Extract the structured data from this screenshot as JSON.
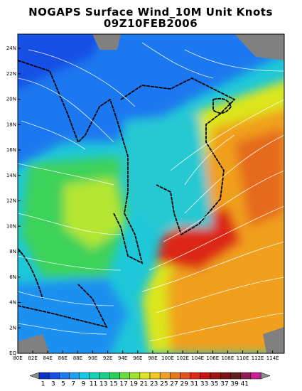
{
  "header": {
    "title": "NOGAPS Surface Wind_10M Unit Knots",
    "subtitle": "09Z10FEB2006"
  },
  "map": {
    "lat_labels": [
      "EQ",
      "2N",
      "4N",
      "6N",
      "8N",
      "10N",
      "12N",
      "14N",
      "16N",
      "18N",
      "20N",
      "22N",
      "24N"
    ],
    "lon_labels": [
      "80E",
      "82E",
      "84E",
      "86E",
      "88E",
      "90E",
      "92E",
      "94E",
      "96E",
      "98E",
      "100E",
      "102E",
      "104E",
      "106E",
      "108E",
      "110E",
      "112E",
      "114E"
    ]
  },
  "colorbar": {
    "labels": [
      1,
      3,
      5,
      7,
      9,
      11,
      13,
      15,
      17,
      19,
      21,
      23,
      25,
      27,
      29,
      31,
      33,
      35,
      37,
      39,
      41
    ],
    "colors": [
      "#0a32c8",
      "#1450e6",
      "#1e78f0",
      "#1ea0f0",
      "#14c8e6",
      "#14d2b4",
      "#14d28c",
      "#28d25a",
      "#64dc3c",
      "#a0e628",
      "#dce61e",
      "#f0c81e",
      "#f0a01e",
      "#e6781e",
      "#e6501e",
      "#dc2814",
      "#c81414",
      "#a01414",
      "#781414",
      "#641e1e",
      "#8c1e50",
      "#c81e96"
    ],
    "end_color": "#8c8c8c"
  }
}
